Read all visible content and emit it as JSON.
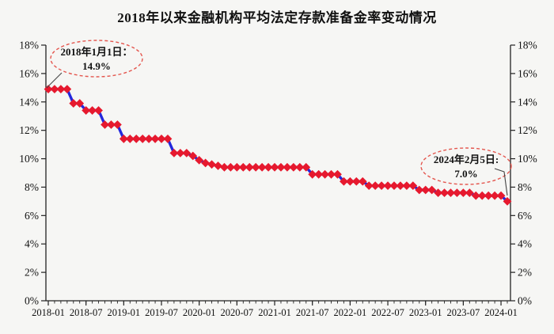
{
  "page": {
    "background": "#f6f6f4"
  },
  "chart_data": {
    "type": "line",
    "title": "2018年以来金融机构平均法定存款准备金率变动情况",
    "ylabel": "",
    "xlabel": "",
    "ylim": [
      0,
      18
    ],
    "ytick_step": 2,
    "ytick_suffix": "%",
    "y_axis_sides": "both",
    "grid": false,
    "legend": "none",
    "line_color": "#2328dc",
    "marker": {
      "shape": "diamond",
      "color": "#e6192e"
    },
    "axis_color": "#222222",
    "annotation_ellipse_color": "#e4564e",
    "x_tick_labels": [
      "2018-01",
      "2018-07",
      "2019-01",
      "2019-07",
      "2020-01",
      "2020-07",
      "2021-01",
      "2021-07",
      "2022-01",
      "2022-07",
      "2023-01",
      "2023-07",
      "2024-01"
    ],
    "series": [
      {
        "name": "金融机构平均法定存款准备金率",
        "x": [
          "2018-01",
          "2018-02",
          "2018-03",
          "2018-04",
          "2018-05",
          "2018-06",
          "2018-07",
          "2018-08",
          "2018-09",
          "2018-10",
          "2018-11",
          "2018-12",
          "2019-01",
          "2019-02",
          "2019-03",
          "2019-04",
          "2019-05",
          "2019-06",
          "2019-07",
          "2019-08",
          "2019-09",
          "2019-10",
          "2019-11",
          "2019-12",
          "2020-01",
          "2020-02",
          "2020-03",
          "2020-04",
          "2020-05",
          "2020-06",
          "2020-07",
          "2020-08",
          "2020-09",
          "2020-10",
          "2020-11",
          "2020-12",
          "2021-01",
          "2021-02",
          "2021-03",
          "2021-04",
          "2021-05",
          "2021-06",
          "2021-07",
          "2021-08",
          "2021-09",
          "2021-10",
          "2021-11",
          "2021-12",
          "2022-01",
          "2022-02",
          "2022-03",
          "2022-04",
          "2022-05",
          "2022-06",
          "2022-07",
          "2022-08",
          "2022-09",
          "2022-10",
          "2022-11",
          "2022-12",
          "2023-01",
          "2023-02",
          "2023-03",
          "2023-04",
          "2023-05",
          "2023-06",
          "2023-07",
          "2023-08",
          "2023-09",
          "2023-10",
          "2023-11",
          "2023-12",
          "2024-01",
          "2024-02"
        ],
        "values": [
          14.9,
          14.9,
          14.9,
          14.9,
          13.9,
          13.9,
          13.4,
          13.4,
          13.4,
          12.4,
          12.4,
          12.4,
          11.4,
          11.4,
          11.4,
          11.4,
          11.4,
          11.4,
          11.4,
          11.4,
          10.4,
          10.4,
          10.4,
          10.2,
          9.9,
          9.7,
          9.6,
          9.5,
          9.4,
          9.4,
          9.4,
          9.4,
          9.4,
          9.4,
          9.4,
          9.4,
          9.4,
          9.4,
          9.4,
          9.4,
          9.4,
          9.4,
          8.9,
          8.9,
          8.9,
          8.9,
          8.9,
          8.4,
          8.4,
          8.4,
          8.4,
          8.1,
          8.1,
          8.1,
          8.1,
          8.1,
          8.1,
          8.1,
          8.1,
          7.8,
          7.8,
          7.8,
          7.6,
          7.6,
          7.6,
          7.6,
          7.6,
          7.6,
          7.4,
          7.4,
          7.4,
          7.4,
          7.4,
          7.0
        ]
      }
    ],
    "annotations": [
      {
        "lines": [
          "2018年1月1日：",
          "14.9%"
        ],
        "target_period": "2018-01",
        "target_value": 14.9
      },
      {
        "lines": [
          "2024年2月5日:",
          "7.0%"
        ],
        "target_period": "2024-02",
        "target_value": 7.0
      }
    ]
  }
}
